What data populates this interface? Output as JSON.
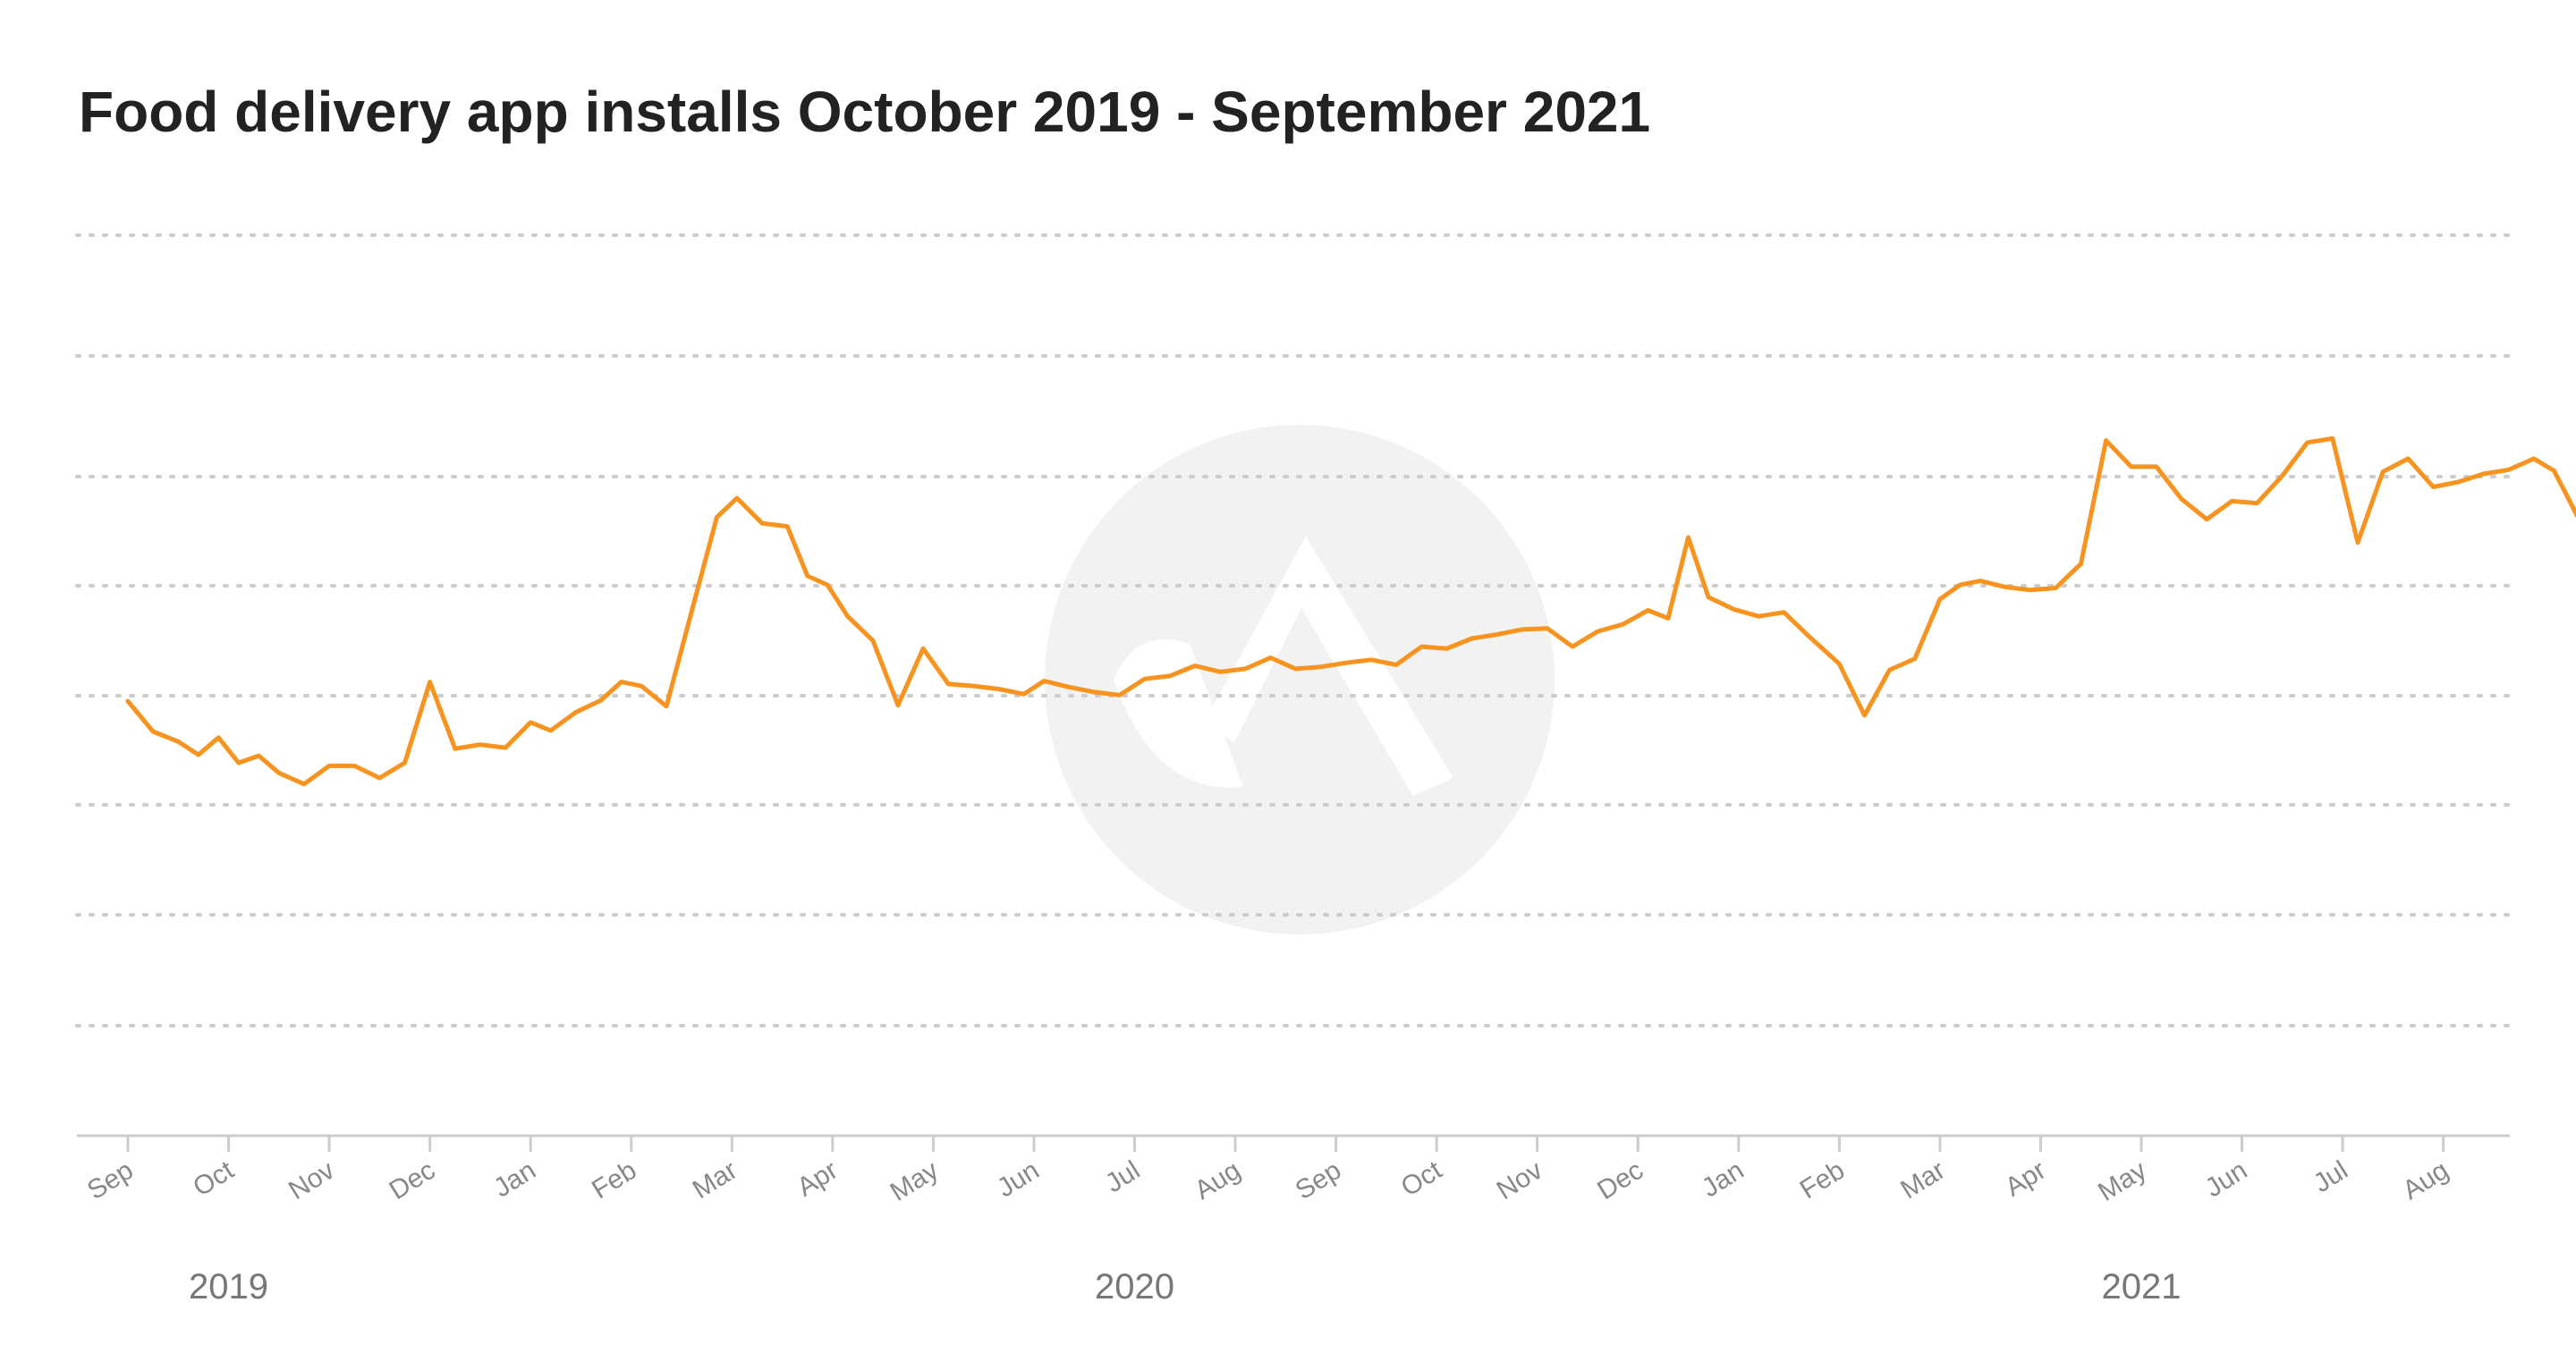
{
  "page": {
    "title": "Food delivery app installs October 2019 - September 2021"
  },
  "chart_data": {
    "type": "line",
    "title": "Food delivery app installs October 2019 - September 2021",
    "xlabel": "",
    "ylabel": "",
    "grid": true,
    "y_axis_labels_shown": false,
    "y_range": [
      0,
      100
    ],
    "y_values_note": "",
    "line_color": "#f7931e",
    "x_tick_labels": [
      "Sep",
      "Oct",
      "Nov",
      "Dec",
      "Jan",
      "Feb",
      "Mar",
      "Apr",
      "May",
      "Jun",
      "Jul",
      "Aug",
      "Sep",
      "Oct",
      "Nov",
      "Dec",
      "Jan",
      "Feb",
      "Mar",
      "Apr",
      "May",
      "Jun",
      "Jul",
      "Aug"
    ],
    "x_tick_months": [
      "2019-09",
      "2019-10",
      "2019-11",
      "2019-12",
      "2020-01",
      "2020-02",
      "2020-03",
      "2020-04",
      "2020-05",
      "2020-06",
      "2020-07",
      "2020-08",
      "2020-09",
      "2020-10",
      "2020-11",
      "2020-12",
      "2021-01",
      "2021-02",
      "2021-03",
      "2021-04",
      "2021-05",
      "2021-06",
      "2021-07",
      "2021-08"
    ],
    "year_labels": [
      {
        "label": "2019",
        "month": "2019-10"
      },
      {
        "label": "2020",
        "month": "2020-07"
      },
      {
        "label": "2021",
        "month": "2021-05"
      }
    ],
    "series": [
      {
        "values": [
          [
            0.0,
            43.0
          ],
          [
            0.25,
            40.0
          ],
          [
            0.5,
            39.0
          ],
          [
            0.7,
            37.7
          ],
          [
            0.9,
            39.4
          ],
          [
            1.1,
            36.9
          ],
          [
            1.3,
            37.6
          ],
          [
            1.5,
            35.9
          ],
          [
            1.75,
            34.8
          ],
          [
            2.0,
            36.6
          ],
          [
            2.25,
            36.6
          ],
          [
            2.5,
            35.4
          ],
          [
            2.75,
            36.9
          ],
          [
            3.0,
            44.9
          ],
          [
            3.25,
            38.3
          ],
          [
            3.5,
            38.7
          ],
          [
            3.75,
            38.4
          ],
          [
            4.0,
            40.9
          ],
          [
            4.2,
            40.1
          ],
          [
            4.45,
            41.9
          ],
          [
            4.7,
            43.1
          ],
          [
            4.9,
            44.9
          ],
          [
            5.1,
            44.5
          ],
          [
            5.35,
            42.5
          ],
          [
            5.6,
            51.9
          ],
          [
            5.85,
            61.2
          ],
          [
            6.05,
            63.1
          ],
          [
            6.3,
            60.6
          ],
          [
            6.55,
            60.3
          ],
          [
            6.75,
            55.4
          ],
          [
            6.95,
            54.5
          ],
          [
            7.15,
            51.4
          ],
          [
            7.4,
            49.0
          ],
          [
            7.65,
            42.6
          ],
          [
            7.9,
            48.2
          ],
          [
            8.15,
            44.7
          ],
          [
            8.4,
            44.5
          ],
          [
            8.65,
            44.2
          ],
          [
            8.9,
            43.7
          ],
          [
            9.1,
            45.0
          ],
          [
            9.35,
            44.4
          ],
          [
            9.6,
            43.9
          ],
          [
            9.85,
            43.6
          ],
          [
            10.1,
            45.2
          ],
          [
            10.35,
            45.5
          ],
          [
            10.6,
            46.5
          ],
          [
            10.85,
            45.9
          ],
          [
            11.1,
            46.2
          ],
          [
            11.35,
            47.3
          ],
          [
            11.6,
            46.2
          ],
          [
            11.85,
            46.4
          ],
          [
            12.1,
            46.8
          ],
          [
            12.35,
            47.1
          ],
          [
            12.6,
            46.6
          ],
          [
            12.85,
            48.4
          ],
          [
            13.1,
            48.2
          ],
          [
            13.35,
            49.2
          ],
          [
            13.6,
            49.6
          ],
          [
            13.85,
            50.1
          ],
          [
            14.1,
            50.2
          ],
          [
            14.35,
            48.4
          ],
          [
            14.6,
            49.9
          ],
          [
            14.85,
            50.6
          ],
          [
            15.1,
            52.0
          ],
          [
            15.3,
            51.2
          ],
          [
            15.5,
            59.2
          ],
          [
            15.7,
            53.3
          ],
          [
            15.95,
            52.1
          ],
          [
            16.2,
            51.4
          ],
          [
            16.45,
            51.8
          ],
          [
            16.7,
            49.4
          ],
          [
            17.0,
            46.7
          ],
          [
            17.25,
            41.6
          ],
          [
            17.5,
            46.1
          ],
          [
            17.75,
            47.2
          ],
          [
            18.0,
            53.1
          ],
          [
            18.2,
            54.5
          ],
          [
            18.4,
            54.9
          ],
          [
            18.65,
            54.3
          ],
          [
            18.9,
            54.0
          ],
          [
            19.15,
            54.2
          ],
          [
            19.4,
            56.6
          ],
          [
            19.65,
            68.8
          ],
          [
            19.9,
            66.2
          ],
          [
            20.15,
            66.2
          ],
          [
            20.4,
            63.0
          ],
          [
            20.65,
            61.0
          ],
          [
            20.9,
            62.8
          ],
          [
            21.15,
            62.6
          ],
          [
            21.4,
            65.3
          ],
          [
            21.65,
            68.6
          ],
          [
            21.9,
            69.0
          ],
          [
            22.15,
            58.7
          ],
          [
            22.4,
            65.7
          ],
          [
            22.65,
            67.0
          ],
          [
            22.9,
            64.2
          ],
          [
            23.15,
            64.7
          ],
          [
            23.4,
            65.5
          ],
          [
            23.65,
            65.9
          ],
          [
            23.9,
            67.0
          ],
          [
            24.1,
            65.8
          ],
          [
            24.4,
            60.0
          ],
          [
            24.65,
            59.4
          ]
        ]
      }
    ]
  }
}
